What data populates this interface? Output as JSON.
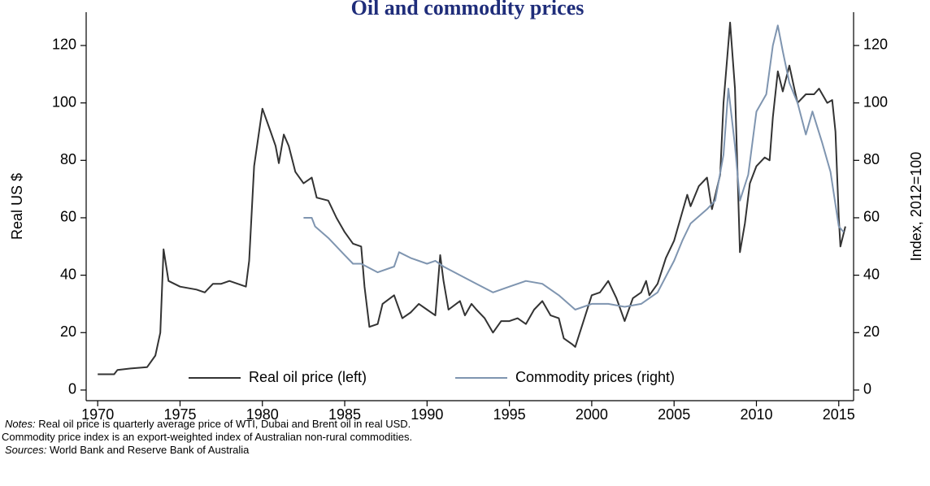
{
  "chart_data": {
    "type": "line",
    "title": "Oil and commodity prices",
    "ylabel": "Real US $",
    "y2label": "Index, 2012=100",
    "xlim": [
      1969.3,
      2015.9
    ],
    "ylim": [
      -3.7,
      131.6
    ],
    "y2lim": [
      -3.7,
      131.6
    ],
    "xticks": [
      1970,
      1975,
      1980,
      1985,
      1990,
      1995,
      2000,
      2005,
      2010,
      2015
    ],
    "yticks": [
      0,
      20,
      40,
      60,
      80,
      100,
      120
    ],
    "y2ticks": [
      0,
      20,
      40,
      60,
      80,
      100,
      120
    ],
    "legend": "bottom",
    "series": [
      {
        "name": "Real oil price (left)",
        "color": "#333333",
        "x": [
          1970,
          1971,
          1971.2,
          1972,
          1973,
          1973.5,
          1973.8,
          1974,
          1974.3,
          1975,
          1976,
          1976.5,
          1977,
          1977.5,
          1978,
          1978.5,
          1979,
          1979.2,
          1979.5,
          1980,
          1980.5,
          1980.8,
          1981,
          1981.3,
          1981.6,
          1982,
          1982.5,
          1983,
          1983.3,
          1984,
          1984.5,
          1985,
          1985.5,
          1986,
          1986.2,
          1986.5,
          1987,
          1987.3,
          1988,
          1988.5,
          1989,
          1989.5,
          1990,
          1990.5,
          1990.8,
          1991,
          1991.3,
          1992,
          1992.3,
          1992.7,
          1993,
          1993.5,
          1994,
          1994.5,
          1995,
          1995.5,
          1996,
          1996.5,
          1997,
          1997.5,
          1998,
          1998.3,
          1998.8,
          1999,
          1999.5,
          2000,
          2000.5,
          2001,
          2001.5,
          2002,
          2002.5,
          2003,
          2003.3,
          2003.5,
          2004,
          2004.5,
          2005,
          2005.5,
          2005.8,
          2006,
          2006.5,
          2007,
          2007.3,
          2007.8,
          2008,
          2008.4,
          2008.7,
          2009,
          2009.3,
          2009.6,
          2010,
          2010.5,
          2010.8,
          2011,
          2011.3,
          2011.6,
          2012,
          2012.3,
          2012.5,
          2013,
          2013.5,
          2013.8,
          2014,
          2014.3,
          2014.6,
          2014.8,
          2015,
          2015.1,
          2015.4
        ],
        "values": [
          5.5,
          5.5,
          7,
          7.5,
          8,
          12,
          20,
          49,
          38,
          36,
          35,
          34,
          37,
          37,
          38,
          37,
          36,
          45,
          78,
          98,
          90,
          85,
          79,
          89,
          85,
          76,
          72,
          74,
          67,
          66,
          60,
          55,
          51,
          50,
          36,
          22,
          23,
          30,
          33,
          25,
          27,
          30,
          28,
          26,
          47,
          38,
          28,
          31,
          26,
          30,
          28,
          25,
          20,
          24,
          24,
          25,
          23,
          28,
          31,
          26,
          25,
          18,
          16,
          15,
          24,
          33,
          34,
          38,
          32,
          24,
          32,
          34,
          38,
          33,
          37,
          46,
          52,
          62,
          68,
          64,
          71,
          74,
          63,
          75,
          100,
          128,
          105,
          48,
          58,
          72,
          78,
          81,
          80,
          95,
          111,
          104,
          113,
          105,
          100,
          103,
          103,
          105,
          103,
          100,
          101,
          90,
          60,
          50,
          57
        ]
      },
      {
        "name": "Commodity prices (right)",
        "color": "#7f95b0",
        "axis": "y2",
        "x": [
          1982.5,
          1983,
          1983.2,
          1984,
          1985,
          1985.5,
          1986,
          1987,
          1988,
          1988.3,
          1989,
          1990,
          1990.5,
          1991,
          1992,
          1993,
          1994,
          1995,
          1996,
          1997,
          1998,
          1999,
          2000,
          2001,
          2002,
          2003,
          2004,
          2005,
          2005.5,
          2006,
          2007,
          2007.5,
          2008,
          2008.3,
          2008.7,
          2009,
          2009.5,
          2010,
          2010.6,
          2011,
          2011.3,
          2011.6,
          2012,
          2012.5,
          2013,
          2013.4,
          2014,
          2014.5,
          2015,
          2015.3
        ],
        "values": [
          60,
          60,
          57,
          53,
          47,
          44,
          44,
          41,
          43,
          48,
          46,
          44,
          45,
          43,
          40,
          37,
          34,
          36,
          38,
          37,
          33,
          28,
          30,
          30,
          29,
          30,
          34,
          45,
          52,
          58,
          63,
          66,
          82,
          105,
          85,
          66,
          75,
          97,
          103,
          120,
          127,
          118,
          107,
          100,
          89,
          97,
          86,
          76,
          57,
          55
        ]
      }
    ],
    "notes_label": "Notes:",
    "notes": "Real oil price is quarterly average price of WTI, Dubai and Brent oil in real USD.",
    "notes2": "Commodity price index is an export-weighted index of Australian non-rural commodities.",
    "sources_label": "Sources:",
    "sources": "World Bank and Reserve Bank of Australia"
  }
}
